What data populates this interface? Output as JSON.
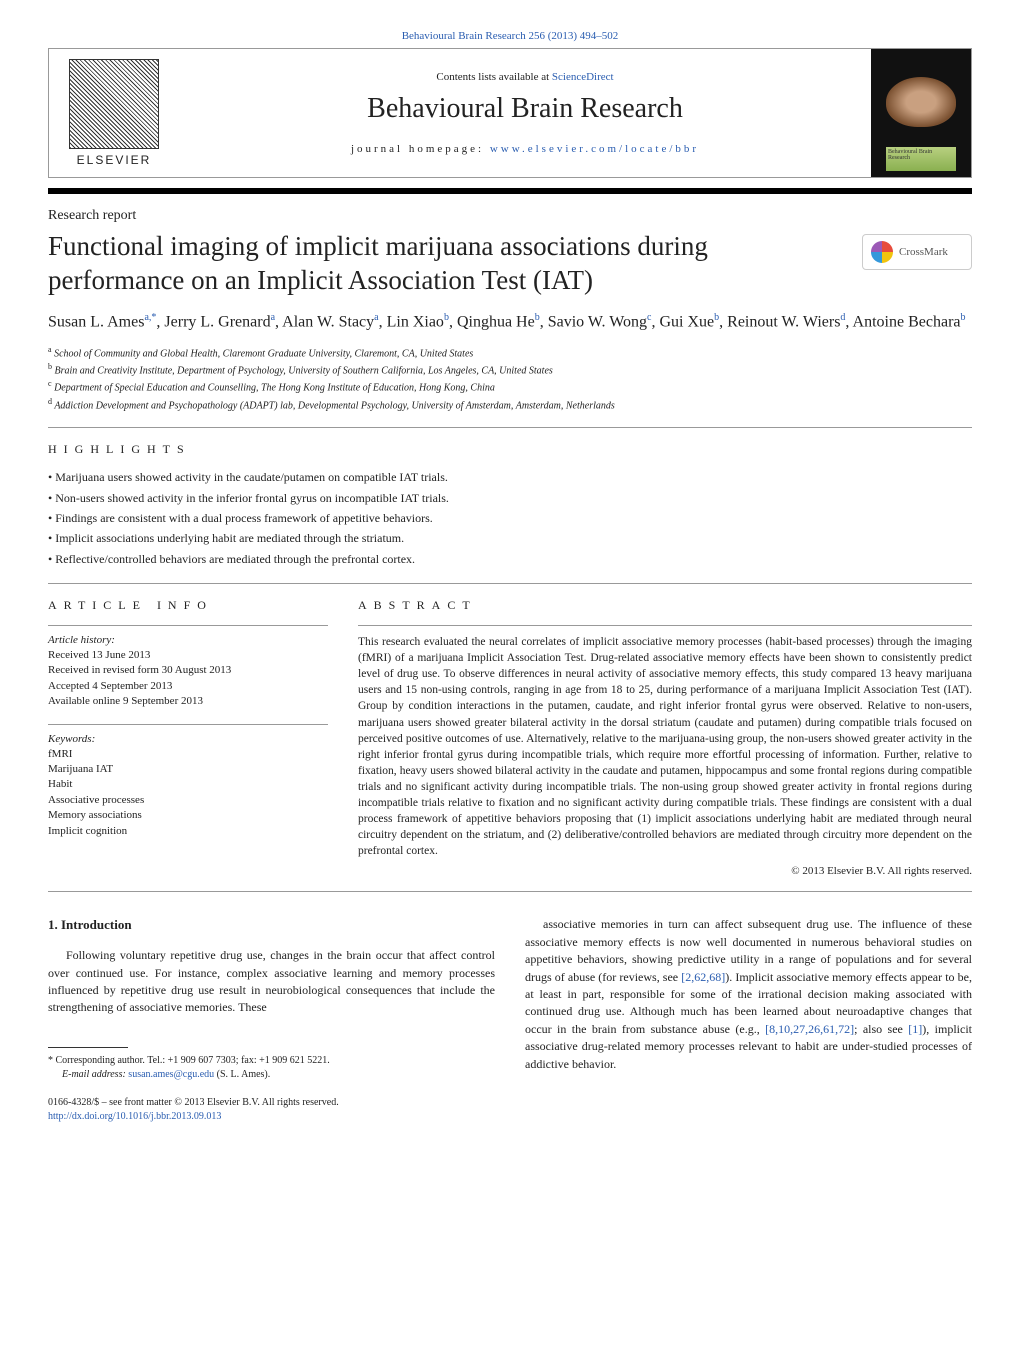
{
  "journal_ref": {
    "text": "Behavioural Brain Research 256 (2013) 494–502",
    "color": "#2a5db0"
  },
  "header": {
    "elsevier": "ELSEVIER",
    "contents_prefix": "Contents lists available at ",
    "contents_link": "ScienceDirect",
    "journal_title": "Behavioural Brain Research",
    "homepage_label": "journal homepage: ",
    "homepage_url": "www.elsevier.com/locate/bbr",
    "cover_label": "Behavioural Brain Research"
  },
  "report_type": "Research report",
  "title": "Functional imaging of implicit marijuana associations during performance on an Implicit Association Test (IAT)",
  "crossmark": "CrossMark",
  "authors": [
    {
      "name": "Susan L. Ames",
      "sup": "a,*"
    },
    {
      "name": "Jerry L. Grenard",
      "sup": "a"
    },
    {
      "name": "Alan W. Stacy",
      "sup": "a"
    },
    {
      "name": "Lin Xiao",
      "sup": "b"
    },
    {
      "name": "Qinghua He",
      "sup": "b"
    },
    {
      "name": "Savio W. Wong",
      "sup": "c"
    },
    {
      "name": "Gui Xue",
      "sup": "b"
    },
    {
      "name": "Reinout W. Wiers",
      "sup": "d"
    },
    {
      "name": "Antoine Bechara",
      "sup": "b"
    }
  ],
  "affiliations": [
    {
      "sup": "a",
      "text": "School of Community and Global Health, Claremont Graduate University, Claremont, CA, United States"
    },
    {
      "sup": "b",
      "text": "Brain and Creativity Institute, Department of Psychology, University of Southern California, Los Angeles, CA, United States"
    },
    {
      "sup": "c",
      "text": "Department of Special Education and Counselling, The Hong Kong Institute of Education, Hong Kong, China"
    },
    {
      "sup": "d",
      "text": "Addiction Development and Psychopathology (ADAPT) lab, Developmental Psychology, University of Amsterdam, Amsterdam, Netherlands"
    }
  ],
  "highlights": {
    "label": "HIGHLIGHTS",
    "items": [
      "Marijuana users showed activity in the caudate/putamen on compatible IAT trials.",
      "Non-users showed activity in the inferior frontal gyrus on incompatible IAT trials.",
      "Findings are consistent with a dual process framework of appetitive behaviors.",
      "Implicit associations underlying habit are mediated through the striatum.",
      "Reflective/controlled behaviors are mediated through the prefrontal cortex."
    ]
  },
  "article_info": {
    "label": "ARTICLE INFO",
    "history_label": "Article history:",
    "history": [
      "Received 13 June 2013",
      "Received in revised form 30 August 2013",
      "Accepted 4 September 2013",
      "Available online 9 September 2013"
    ],
    "keywords_label": "Keywords:",
    "keywords": [
      "fMRI",
      "Marijuana IAT",
      "Habit",
      "Associative processes",
      "Memory associations",
      "Implicit cognition"
    ]
  },
  "abstract": {
    "label": "ABSTRACT",
    "text": "This research evaluated the neural correlates of implicit associative memory processes (habit-based processes) through the imaging (fMRI) of a marijuana Implicit Association Test. Drug-related associative memory effects have been shown to consistently predict level of drug use. To observe differences in neural activity of associative memory effects, this study compared 13 heavy marijuana users and 15 non-using controls, ranging in age from 18 to 25, during performance of a marijuana Implicit Association Test (IAT). Group by condition interactions in the putamen, caudate, and right inferior frontal gyrus were observed. Relative to non-users, marijuana users showed greater bilateral activity in the dorsal striatum (caudate and putamen) during compatible trials focused on perceived positive outcomes of use. Alternatively, relative to the marijuana-using group, the non-users showed greater activity in the right inferior frontal gyrus during incompatible trials, which require more effortful processing of information. Further, relative to fixation, heavy users showed bilateral activity in the caudate and putamen, hippocampus and some frontal regions during compatible trials and no significant activity during incompatible trials. The non-using group showed greater activity in frontal regions during incompatible trials relative to fixation and no significant activity during compatible trials. These findings are consistent with a dual process framework of appetitive behaviors proposing that (1) implicit associations underlying habit are mediated through neural circuitry dependent on the striatum, and (2) deliberative/controlled behaviors are mediated through circuitry more dependent on the prefrontal cortex.",
    "copyright": "© 2013 Elsevier B.V. All rights reserved."
  },
  "intro": {
    "heading": "1.  Introduction",
    "left": "Following voluntary repetitive drug use, changes in the brain occur that affect control over continued use. For instance, complex associative learning and memory processes influenced by repetitive drug use result in neurobiological consequences that include the strengthening of associative memories. These",
    "right_1": "associative memories in turn can affect subsequent drug use. The influence of these associative memory effects is now well documented in numerous behavioral studies on appetitive behaviors, showing predictive utility in a range of populations and for several drugs of abuse (for reviews, see ",
    "right_ref1": "[2,62,68]",
    "right_2": "). Implicit associative memory effects appear to be, at least in part, responsible for some of the irrational decision making associated with continued drug use. Although much has been learned about neuroadaptive changes that occur in the brain from substance abuse (e.g., ",
    "right_ref2": "[8,10,27,26,61,72]",
    "right_3": "; also see ",
    "right_ref3": "[1]",
    "right_4": "), implicit associative drug-related memory processes relevant to habit are under-studied processes of addictive behavior."
  },
  "footnote": {
    "corr": "* Corresponding author. Tel.: +1 909 607 7303; fax: +1 909 621 5221.",
    "email_label": "E-mail address: ",
    "email": "susan.ames@cgu.edu",
    "email_suffix": " (S. L. Ames)."
  },
  "issn": {
    "line1": "0166-4328/$ – see front matter © 2013 Elsevier B.V. All rights reserved.",
    "doi": "http://dx.doi.org/10.1016/j.bbr.2013.09.013"
  }
}
